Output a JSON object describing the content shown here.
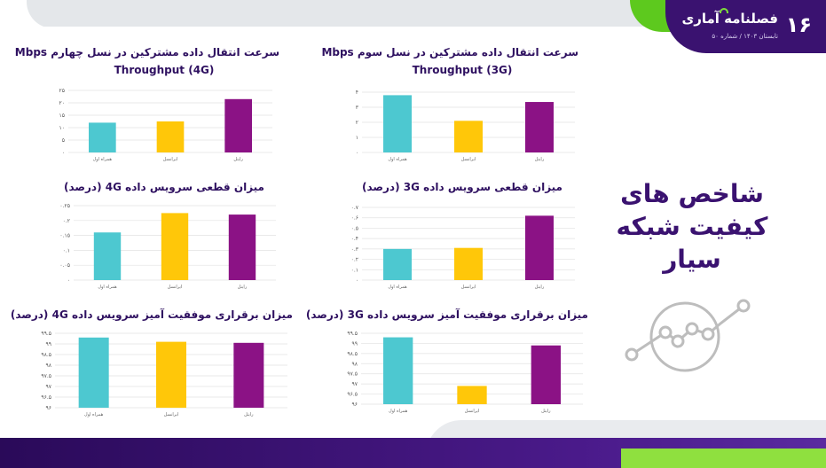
{
  "header": {
    "page_number": "۱۶",
    "brand_name": "فصلنامه آماری",
    "brand_sub": "تابستان ۱۴۰۳ / شماره ۵۰"
  },
  "main_title": [
    "شاخص های",
    "کیفیت شبکه",
    "سیار"
  ],
  "colors": {
    "cyan": "#4dc8d0",
    "yellow": "#ffc709",
    "purple": "#8b1285",
    "title": "#2e1060"
  },
  "chart_data": [
    {
      "id": "throughput-4g",
      "type": "bar",
      "title_lines": [
        "سرعت انتقال داده مشترکین در نسل چهارم Mbps",
        "Throughput (4G)"
      ],
      "categories": [
        "همراه اول",
        "ایرانسل",
        "رایتل"
      ],
      "values": [
        12,
        12.5,
        21.5
      ],
      "yticks": [
        "۰",
        "۵",
        "۱۰",
        "۱۵",
        "۲۰",
        "۲۵"
      ],
      "ylim": [
        0,
        25
      ],
      "grid": true
    },
    {
      "id": "throughput-3g",
      "type": "bar",
      "title_lines": [
        "سرعت انتقال داده مشترکین در نسل سوم Mbps",
        "Throughput (3G)"
      ],
      "categories": [
        "همراه اول",
        "ایرانسل",
        "رایتل"
      ],
      "values": [
        3.8,
        2.1,
        3.35
      ],
      "yticks": [
        "۰",
        "۱",
        "۲",
        "۳",
        "۴"
      ],
      "ylim": [
        0,
        4
      ],
      "grid": true
    },
    {
      "id": "drop-4g",
      "type": "bar",
      "title_lines": [
        "میزان قطعی سرویس داده 4G (درصد)"
      ],
      "categories": [
        "همراه اول",
        "ایرانسل",
        "رایتل"
      ],
      "values": [
        0.16,
        0.225,
        0.22
      ],
      "yticks": [
        "۰",
        "۰.۰۵",
        "۰.۱",
        "۰.۱۵",
        "۰.۲",
        "۰.۲۵"
      ],
      "ylim": [
        0,
        0.25
      ],
      "grid": true
    },
    {
      "id": "drop-3g",
      "type": "bar",
      "title_lines": [
        "میزان قطعی سرویس داده 3G (درصد)"
      ],
      "categories": [
        "همراه اول",
        "ایرانسل",
        "رایتل"
      ],
      "values": [
        0.3,
        0.31,
        0.62
      ],
      "yticks": [
        "۰",
        "۰.۱",
        "۰.۲",
        "۰.۳",
        "۰.۴",
        "۰.۵",
        "۰.۶",
        "۰.۷"
      ],
      "ylim": [
        0,
        0.7
      ],
      "grid": true
    },
    {
      "id": "success-4g",
      "type": "bar",
      "title_lines": [
        "میزان برقراری موفقیت آمیز سرویس داده 4G (درصد)"
      ],
      "categories": [
        "همراه اول",
        "ایرانسل",
        "رایتل"
      ],
      "values": [
        99.3,
        99.1,
        99.05
      ],
      "yticks": [
        "۹۶",
        "۹۶.۵",
        "۹۷",
        "۹۷.۵",
        "۹۸",
        "۹۸.۵",
        "۹۹",
        "۹۹.۵"
      ],
      "ylim": [
        96,
        99.5
      ],
      "grid": true
    },
    {
      "id": "success-3g",
      "type": "bar",
      "title_lines": [
        "میزان برقراری موفقیت آمیز سرویس داده 3G (درصد)"
      ],
      "categories": [
        "همراه اول",
        "ایرانسل",
        "رایتل"
      ],
      "values": [
        99.3,
        96.9,
        98.9
      ],
      "yticks": [
        "۹۶",
        "۹۶.۵",
        "۹۷",
        "۹۷.۵",
        "۹۸",
        "۹۸.۵",
        "۹۹",
        "۹۹.۵"
      ],
      "ylim": [
        96,
        99.5
      ],
      "grid": true
    }
  ]
}
